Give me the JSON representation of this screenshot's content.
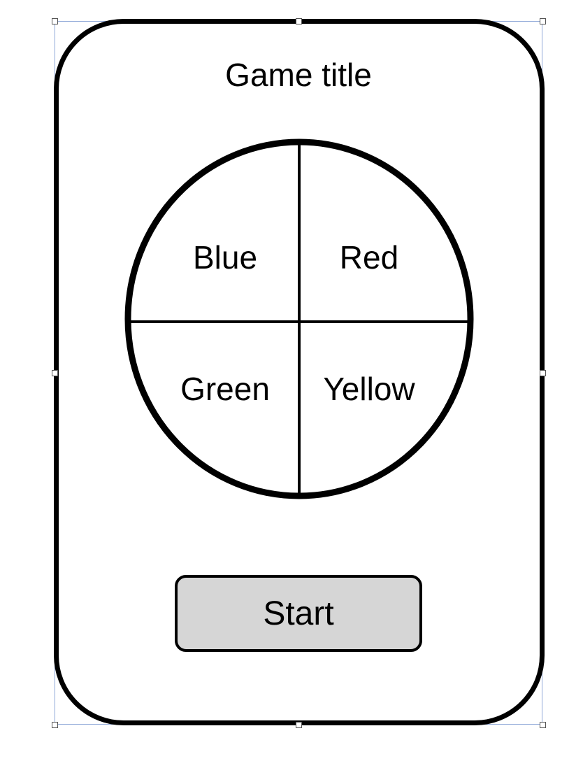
{
  "game": {
    "title": "Game title",
    "wheel": {
      "segments": [
        {
          "label": "Blue"
        },
        {
          "label": "Red"
        },
        {
          "label": "Green"
        },
        {
          "label": "Yellow"
        }
      ]
    },
    "start_label": "Start"
  },
  "colors": {
    "frame_stroke": "#000000",
    "button_fill": "#d6d6d6",
    "selection_outline": "#8fa8d8"
  }
}
